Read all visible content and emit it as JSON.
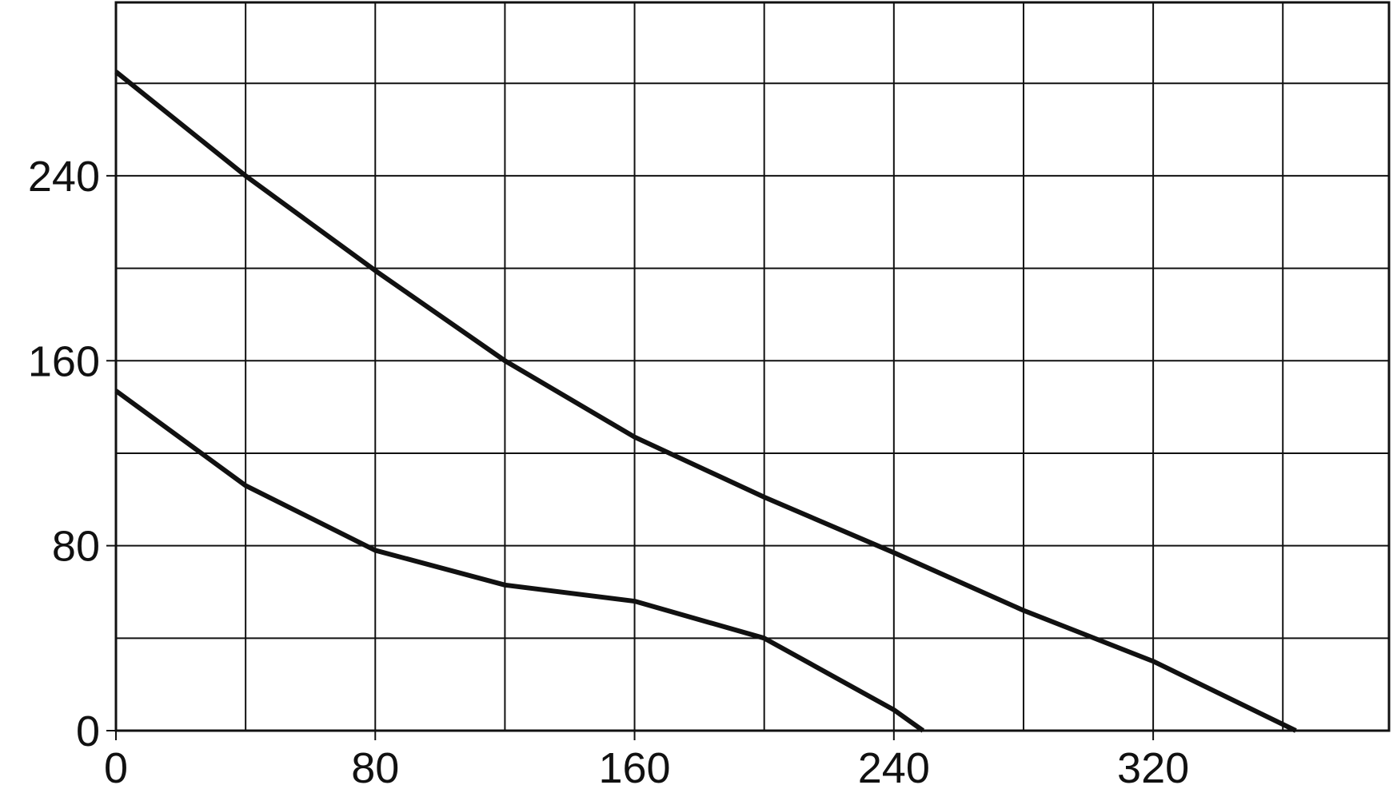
{
  "chart_data": {
    "type": "line",
    "xlim": [
      0,
      393
    ],
    "ylim": [
      0,
      315
    ],
    "xticks": [
      0,
      80,
      160,
      240,
      320
    ],
    "yticks": [
      0,
      80,
      160,
      240
    ],
    "x_minor_grid": [
      40,
      120,
      200,
      280,
      360
    ],
    "y_minor_grid": [
      40,
      120,
      200,
      280
    ],
    "grid": true,
    "series": [
      {
        "color": "#111111",
        "x": [
          0,
          40,
          80,
          120,
          160,
          200,
          240,
          280,
          320,
          364
        ],
        "values": [
          285,
          240,
          199,
          160,
          127,
          101,
          77,
          52,
          30,
          0
        ]
      },
      {
        "color": "#111111",
        "x": [
          0,
          40,
          80,
          120,
          160,
          200,
          240,
          249
        ],
        "values": [
          147,
          106,
          78,
          63,
          56,
          40,
          9,
          0
        ]
      }
    ]
  }
}
